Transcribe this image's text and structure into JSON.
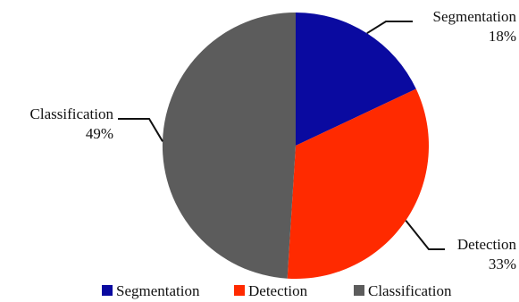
{
  "chart_data": {
    "type": "pie",
    "slices": [
      {
        "label": "Segmentation",
        "value": 18,
        "value_text": "18%",
        "color": "#0a0aa0"
      },
      {
        "label": "Detection",
        "value": 33,
        "value_text": "33%",
        "color": "#ff2a00"
      },
      {
        "label": "Classification",
        "value": 49,
        "value_text": "49%",
        "color": "#5c5c5c"
      }
    ],
    "start": "12 o'clock",
    "direction": "clockwise",
    "legend_position": "bottom"
  }
}
